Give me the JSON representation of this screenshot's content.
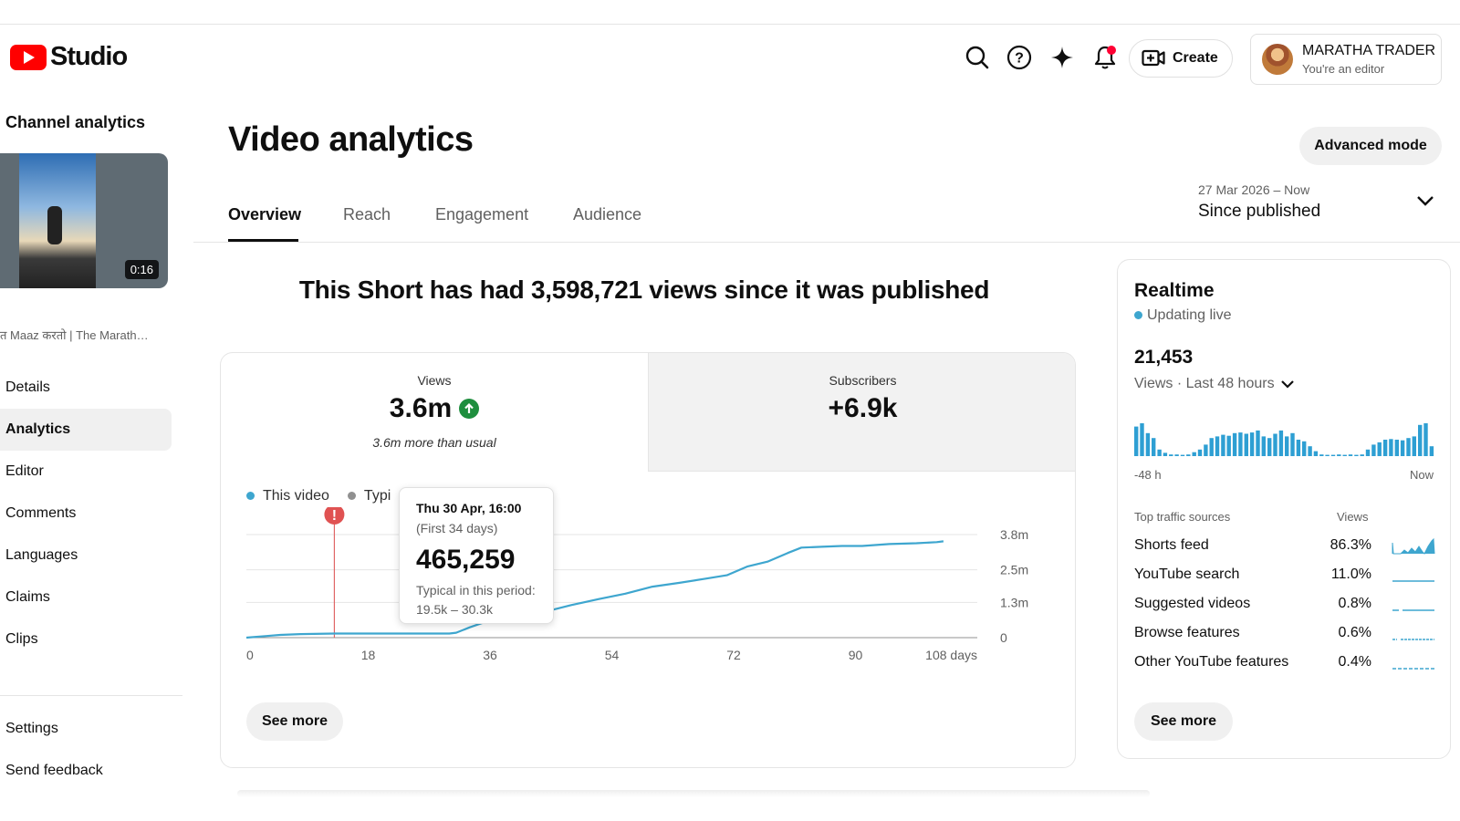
{
  "header": {
    "logo_text": "Studio",
    "create_label": "Create",
    "account_name": "MARATHA TRADER",
    "account_role": "You're an editor",
    "icons": [
      "search-icon",
      "help-icon",
      "sparkle-icon",
      "notifications-icon",
      "create-video-icon"
    ]
  },
  "sidebar": {
    "title": "Channel analytics",
    "thumbnail_duration": "0:16",
    "video_title": "त Maaz करतो | The Marath…",
    "items": [
      {
        "label": "Details"
      },
      {
        "label": "Analytics",
        "active": true
      },
      {
        "label": "Editor"
      },
      {
        "label": "Comments"
      },
      {
        "label": "Languages"
      },
      {
        "label": "Claims"
      },
      {
        "label": "Clips"
      }
    ],
    "footer_items": [
      {
        "label": "Settings"
      },
      {
        "label": "Send feedback"
      }
    ]
  },
  "main": {
    "title": "Video analytics",
    "advanced_mode_label": "Advanced mode",
    "tabs": [
      {
        "label": "Overview",
        "active": true
      },
      {
        "label": "Reach"
      },
      {
        "label": "Engagement"
      },
      {
        "label": "Audience"
      }
    ],
    "date_range": "27 Mar 2026 – Now",
    "date_label": "Since published",
    "headline": "This Short has had 3,598,721 views since it was published"
  },
  "metrics": {
    "views_label": "Views",
    "views_value": "3.6m",
    "views_note": "3.6m more than usual",
    "subs_label": "Subscribers",
    "subs_value": "+6.9k"
  },
  "chart": {
    "legend_this": "This video",
    "legend_typical": "Typi",
    "see_more_label": "See more",
    "tooltip": {
      "date": "Thu 30 Apr, 16:00",
      "subtitle": "(First 34 days)",
      "value": "465,259",
      "typical_label": "Typical in this period:",
      "typical_range": "19.5k – 30.3k"
    }
  },
  "chart_data": {
    "type": "line",
    "x_ticks": [
      "0",
      "18",
      "36",
      "54",
      "72",
      "90",
      "108 days"
    ],
    "y_ticks": [
      "0",
      "1.3m",
      "2.5m",
      "3.8m"
    ],
    "xlim": [
      0,
      108
    ],
    "ylim": [
      0,
      3.8
    ],
    "series": [
      {
        "name": "This video",
        "color": "#3ea6cf",
        "x": [
          0,
          3,
          5,
          8,
          13,
          18,
          24,
          30,
          31,
          33,
          35,
          37,
          40,
          44,
          48,
          52,
          56,
          60,
          64,
          68,
          71,
          74,
          77,
          80,
          82,
          85,
          88,
          91,
          95,
          99,
          102,
          103
        ],
        "y": [
          0.0,
          0.06,
          0.1,
          0.13,
          0.15,
          0.15,
          0.15,
          0.15,
          0.18,
          0.38,
          0.55,
          0.7,
          0.78,
          0.95,
          1.2,
          1.42,
          1.62,
          1.88,
          2.02,
          2.18,
          2.3,
          2.62,
          2.8,
          3.12,
          3.32,
          3.35,
          3.38,
          3.38,
          3.45,
          3.48,
          3.52,
          3.55
        ]
      }
    ],
    "marker_x": 13
  },
  "realtime": {
    "title": "Realtime",
    "live_label": "Updating live",
    "count": "21,453",
    "period_label": "Views · Last 48 hours",
    "axis_start": "-48 h",
    "axis_end": "Now",
    "bars": [
      0.9,
      1.0,
      0.7,
      0.55,
      0.2,
      0.1,
      0.05,
      0.05,
      0.04,
      0.05,
      0.12,
      0.2,
      0.35,
      0.55,
      0.6,
      0.65,
      0.62,
      0.7,
      0.72,
      0.68,
      0.72,
      0.78,
      0.6,
      0.55,
      0.68,
      0.78,
      0.6,
      0.7,
      0.5,
      0.45,
      0.3,
      0.15,
      0.05,
      0.04,
      0.04,
      0.05,
      0.04,
      0.05,
      0.04,
      0.05,
      0.2,
      0.35,
      0.42,
      0.5,
      0.52,
      0.5,
      0.48,
      0.55,
      0.6,
      0.95,
      1.0,
      0.3
    ],
    "traffic_header_source": "Top traffic sources",
    "traffic_header_views": "Views",
    "traffic_sources": [
      {
        "name": "Shorts feed",
        "pct": "86.3%"
      },
      {
        "name": "YouTube search",
        "pct": "11.0%"
      },
      {
        "name": "Suggested videos",
        "pct": "0.8%"
      },
      {
        "name": "Browse features",
        "pct": "0.6%"
      },
      {
        "name": "Other YouTube features",
        "pct": "0.4%"
      }
    ],
    "see_more_label": "See more"
  }
}
